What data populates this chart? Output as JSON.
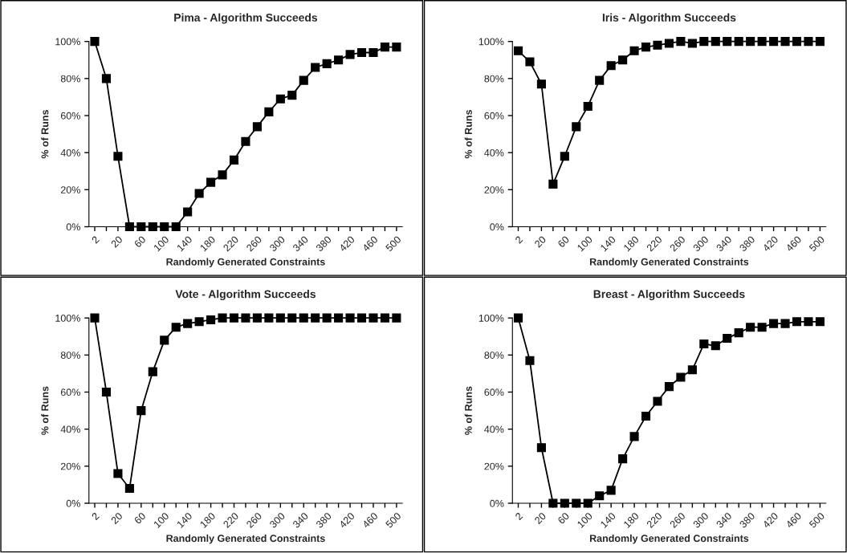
{
  "chart_data": [
    {
      "type": "line",
      "title": "Pima - Algorithm Succeeds",
      "xlabel": "Randomly Generated Constraints",
      "ylabel": "% of Runs",
      "categories": [
        "2",
        null,
        "20",
        null,
        "60",
        null,
        "100",
        null,
        "140",
        null,
        "180",
        null,
        "220",
        null,
        "260",
        null,
        "300",
        null,
        "340",
        null,
        "380",
        null,
        "420",
        null,
        "460",
        null,
        "500"
      ],
      "series": [
        {
          "color": "#000000",
          "values": [
            100,
            80,
            38,
            0,
            0,
            0,
            0,
            0,
            8,
            18,
            24,
            28,
            36,
            46,
            54,
            62,
            69,
            71,
            79,
            86,
            88,
            90,
            93,
            94,
            94,
            97,
            97
          ]
        }
      ],
      "ylim": [
        0,
        100
      ],
      "yticks": [
        {
          "value": 0,
          "label": "0%"
        },
        {
          "value": 20,
          "label": "20%"
        },
        {
          "value": 40,
          "label": "40%"
        },
        {
          "value": 60,
          "label": "60%"
        },
        {
          "value": 80,
          "label": "80%"
        },
        {
          "value": 100,
          "label": "100%"
        }
      ],
      "marker": "square",
      "line_style": "solid",
      "grid": false
    },
    {
      "type": "line",
      "title": "Iris - Algorithm Succeeds",
      "xlabel": "Randomly Generated Constraints",
      "ylabel": "% of Runs",
      "categories": [
        "2",
        null,
        "20",
        null,
        "60",
        null,
        "100",
        null,
        "140",
        null,
        "180",
        null,
        "220",
        null,
        "260",
        null,
        "300",
        null,
        "340",
        null,
        "380",
        null,
        "420",
        null,
        "460",
        null,
        "500"
      ],
      "series": [
        {
          "color": "#000000",
          "values": [
            95,
            89,
            77,
            23,
            38,
            54,
            65,
            79,
            87,
            90,
            95,
            97,
            98,
            99,
            100,
            99,
            100,
            100,
            100,
            100,
            100,
            100,
            100,
            100,
            100,
            100,
            100
          ]
        }
      ],
      "ylim": [
        0,
        100
      ],
      "yticks": [
        {
          "value": 0,
          "label": "0%"
        },
        {
          "value": 20,
          "label": "20%"
        },
        {
          "value": 40,
          "label": "40%"
        },
        {
          "value": 60,
          "label": "60%"
        },
        {
          "value": 80,
          "label": "80%"
        },
        {
          "value": 100,
          "label": "100%"
        }
      ],
      "marker": "square",
      "line_style": "solid",
      "grid": false
    },
    {
      "type": "line",
      "title": "Vote - Algorithm Succeeds",
      "xlabel": "Randomly Generated Constraints",
      "ylabel": "% of Runs",
      "categories": [
        "2",
        null,
        "20",
        null,
        "60",
        null,
        "100",
        null,
        "140",
        null,
        "180",
        null,
        "220",
        null,
        "260",
        null,
        "300",
        null,
        "340",
        null,
        "380",
        null,
        "420",
        null,
        "460",
        null,
        "500"
      ],
      "series": [
        {
          "color": "#000000",
          "values": [
            100,
            60,
            16,
            8,
            50,
            71,
            88,
            95,
            97,
            98,
            99,
            100,
            100,
            100,
            100,
            100,
            100,
            100,
            100,
            100,
            100,
            100,
            100,
            100,
            100,
            100,
            100
          ]
        }
      ],
      "ylim": [
        0,
        100
      ],
      "yticks": [
        {
          "value": 0,
          "label": "0%"
        },
        {
          "value": 20,
          "label": "20%"
        },
        {
          "value": 40,
          "label": "40%"
        },
        {
          "value": 60,
          "label": "60%"
        },
        {
          "value": 80,
          "label": "80%"
        },
        {
          "value": 100,
          "label": "100%"
        }
      ],
      "marker": "square",
      "line_style": "solid",
      "grid": false
    },
    {
      "type": "line",
      "title": "Breast - Algorithm Succeeds",
      "xlabel": "Randomly Generated Constraints",
      "ylabel": "% of Runs",
      "categories": [
        "2",
        null,
        "20",
        null,
        "60",
        null,
        "100",
        null,
        "140",
        null,
        "180",
        null,
        "220",
        null,
        "260",
        null,
        "300",
        null,
        "340",
        null,
        "380",
        null,
        "420",
        null,
        "460",
        null,
        "500"
      ],
      "series": [
        {
          "color": "#000000",
          "values": [
            100,
            77,
            30,
            0,
            0,
            0,
            0,
            4,
            7,
            24,
            36,
            47,
            55,
            63,
            68,
            72,
            86,
            85,
            89,
            92,
            95,
            95,
            97,
            97,
            98,
            98,
            98
          ]
        }
      ],
      "ylim": [
        0,
        100
      ],
      "yticks": [
        {
          "value": 0,
          "label": "0%"
        },
        {
          "value": 20,
          "label": "20%"
        },
        {
          "value": 40,
          "label": "40%"
        },
        {
          "value": 60,
          "label": "60%"
        },
        {
          "value": 80,
          "label": "80%"
        },
        {
          "value": 100,
          "label": "100%"
        }
      ],
      "marker": "square",
      "line_style": "solid",
      "grid": false
    }
  ]
}
